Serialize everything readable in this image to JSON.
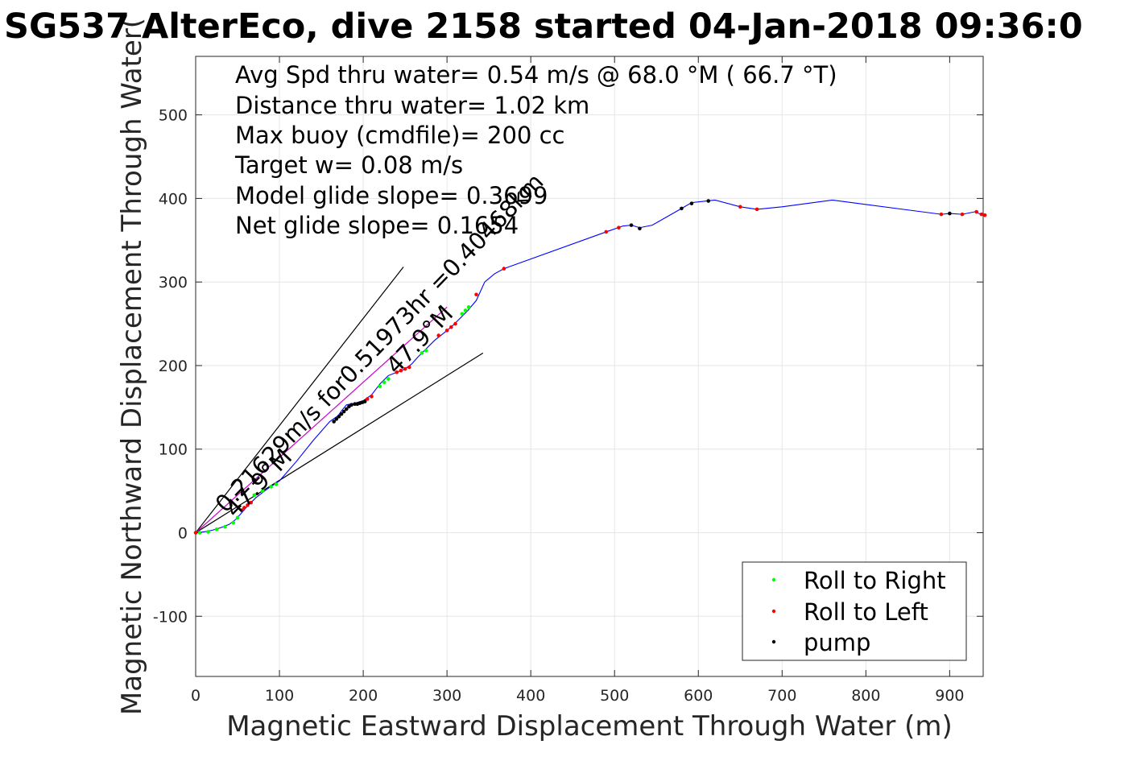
{
  "chart_data": {
    "type": "line",
    "title": "SG537 AlterEco, dive 2158 started 04-Jan-2018 09:36:0",
    "xlabel": "Magnetic Eastward Displacement Through Water (m)",
    "ylabel": "Magnetic Northward Displacement Through Water(",
    "xlim": [
      0,
      940
    ],
    "ylim": [
      -172,
      570
    ],
    "xticks": [
      0,
      100,
      200,
      300,
      400,
      500,
      600,
      700,
      800,
      900
    ],
    "yticks": [
      -100,
      0,
      100,
      200,
      300,
      400,
      500
    ],
    "xtick_labels": [
      "0",
      "100",
      "200",
      "300",
      "400",
      "500",
      "600",
      "700",
      "800",
      "900"
    ],
    "ytick_labels": [
      "-100",
      "0",
      "100",
      "200",
      "300",
      "400",
      "500"
    ],
    "grid": true,
    "legend_position": "bottom-right",
    "colors": {
      "track": "#0000ff",
      "roll_right": "#00ff00",
      "roll_left": "#ff0000",
      "pump": "#000000",
      "heading": "#000000"
    },
    "annotations": [
      "Avg Spd thru water=  0.54 m/s @  68.0 °M ( 66.7 °T)",
      "Distance thru water=  1.02 km",
      "Max buoy (cmdfile)= 200 cc",
      "Target w= 0.08 m/s",
      "Model glide slope= 0.3699",
      "Net glide slope= 0.1654"
    ],
    "diagonal_labels": [
      "0.21629m/s for0.51973hr =0.40468km",
      "47.9°M",
      "47.9°M"
    ],
    "heading_lines": [
      {
        "x": [
          0,
          248
        ],
        "y": [
          0,
          318
        ]
      },
      {
        "x": [
          0,
          343
        ],
        "y": [
          0,
          215
        ]
      },
      {
        "x": [
          0,
          300
        ],
        "y": [
          0,
          270
        ]
      }
    ],
    "series": [
      {
        "name": "track",
        "x": [
          0,
          10,
          20,
          30,
          40,
          48,
          55,
          62,
          72,
          85,
          100,
          120,
          140,
          160,
          170,
          175,
          180,
          190,
          200,
          210,
          220,
          230,
          240,
          250,
          258,
          265,
          275,
          285,
          295,
          305,
          315,
          325,
          335,
          345,
          357,
          368,
          490,
          510,
          520,
          530,
          545,
          580,
          592,
          610,
          620,
          650,
          670,
          700,
          760,
          890,
          900,
          915,
          930,
          940
        ],
        "y": [
          0,
          1,
          3,
          6,
          10,
          16,
          24,
          32,
          42,
          52,
          62,
          85,
          110,
          133,
          140,
          147,
          153,
          155,
          158,
          165,
          178,
          188,
          192,
          196,
          202,
          210,
          220,
          230,
          238,
          246,
          256,
          266,
          278,
          300,
          310,
          316,
          360,
          367,
          368,
          365,
          368,
          388,
          395,
          397,
          398,
          390,
          387,
          390,
          398,
          381,
          382,
          381,
          384,
          380
        ]
      },
      {
        "name": "Roll to Right",
        "x": [
          5,
          15,
          25,
          35,
          45,
          50,
          70,
          80,
          90,
          96,
          220,
          225,
          230,
          270,
          275,
          318,
          322,
          326
        ],
        "y": [
          0,
          1,
          4,
          7,
          12,
          18,
          45,
          50,
          55,
          58,
          175,
          180,
          184,
          215,
          218,
          262,
          266,
          270
        ]
      },
      {
        "name": "Roll to Left",
        "x": [
          0,
          55,
          58,
          62,
          66,
          205,
          210,
          240,
          245,
          250,
          255,
          290,
          300,
          305,
          310,
          335,
          368,
          490,
          505,
          650,
          670,
          890,
          915,
          932,
          938,
          942
        ],
        "y": [
          0,
          27,
          30,
          33,
          36,
          160,
          163,
          192,
          194,
          196,
          198,
          236,
          242,
          246,
          250,
          285,
          316,
          360,
          365,
          390,
          387,
          381,
          381,
          384,
          381,
          380
        ]
      },
      {
        "name": "pump",
        "x": [
          165,
          168,
          171,
          174,
          177,
          180,
          183,
          186,
          190,
          193,
          196,
          199,
          202,
          520,
          530,
          580,
          592,
          612,
          900
        ],
        "y": [
          133,
          136,
          139,
          142,
          145,
          148,
          151,
          153,
          154,
          154,
          155,
          156,
          157,
          368,
          364,
          388,
          394,
          397,
          382
        ]
      }
    ],
    "legend": [
      {
        "label": "Roll to Right"
      },
      {
        "label": "Roll to Left"
      },
      {
        "label": "pump"
      }
    ]
  }
}
